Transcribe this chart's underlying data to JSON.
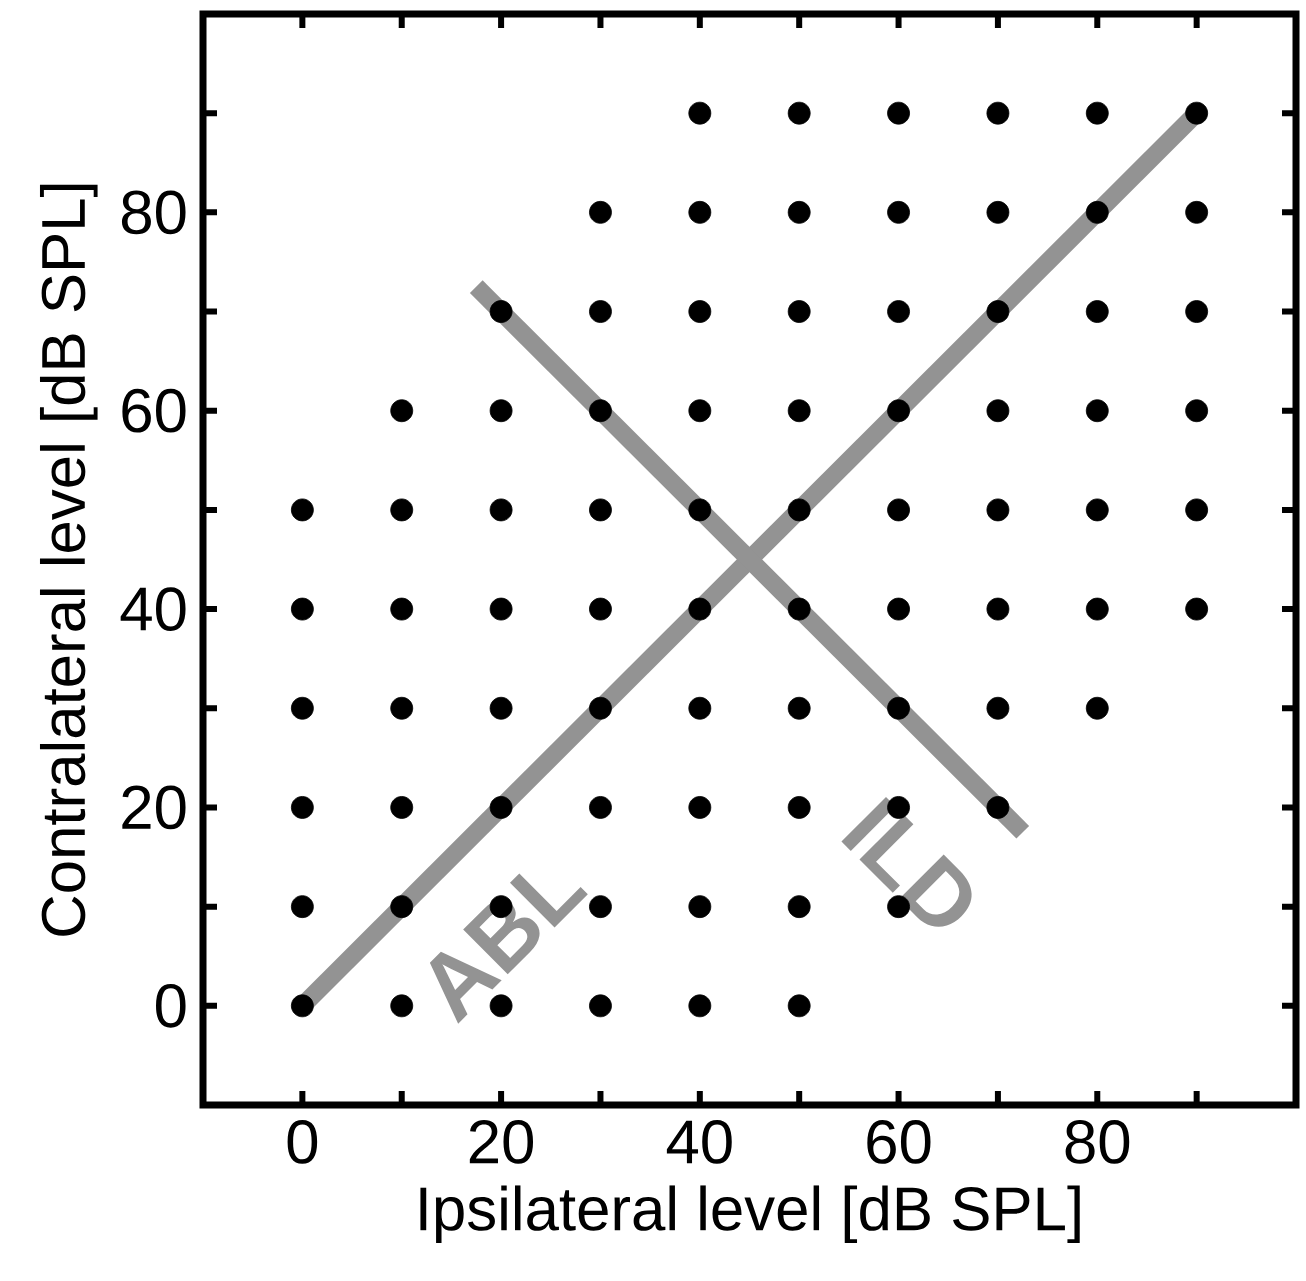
{
  "chart_data": {
    "type": "scatter",
    "xlabel": "Ipsilateral level [dB SPL]",
    "ylabel": "Contralateral level [dB SPL]",
    "xlim": [
      -10,
      100
    ],
    "ylim": [
      -10,
      100
    ],
    "xticks": [
      0,
      {
        "value": 10,
        "label": null
      },
      20,
      {
        "value": 30,
        "label": null
      },
      40,
      {
        "value": 50,
        "label": null
      },
      60,
      {
        "value": 70,
        "label": null
      },
      80,
      {
        "value": 90,
        "label": null
      }
    ],
    "yticks": [
      0,
      {
        "value": 10,
        "label": null
      },
      20,
      {
        "value": 30,
        "label": null
      },
      40,
      {
        "value": 50,
        "label": null
      },
      60,
      {
        "value": 70,
        "label": null
      },
      80,
      {
        "value": 90,
        "label": null
      }
    ],
    "series": [
      {
        "marker": "circle",
        "color": "#000000",
        "x": [
          0,
          10,
          20,
          30,
          40,
          50,
          0,
          10,
          20,
          30,
          40,
          50,
          60,
          0,
          10,
          20,
          30,
          40,
          50,
          60,
          70,
          0,
          10,
          20,
          30,
          40,
          50,
          60,
          70,
          80,
          0,
          10,
          20,
          30,
          40,
          50,
          60,
          70,
          80,
          90,
          0,
          10,
          20,
          30,
          40,
          50,
          60,
          70,
          80,
          90,
          10,
          20,
          30,
          40,
          50,
          60,
          70,
          80,
          90,
          20,
          30,
          40,
          50,
          60,
          70,
          80,
          90,
          30,
          40,
          50,
          60,
          70,
          80,
          90,
          40,
          50,
          60,
          70,
          80,
          90
        ],
        "values": [
          0,
          0,
          0,
          0,
          0,
          0,
          10,
          10,
          10,
          10,
          10,
          10,
          10,
          20,
          20,
          20,
          20,
          20,
          20,
          20,
          20,
          30,
          30,
          30,
          30,
          30,
          30,
          30,
          30,
          30,
          40,
          40,
          40,
          40,
          40,
          40,
          40,
          40,
          40,
          40,
          50,
          50,
          50,
          50,
          50,
          50,
          50,
          50,
          50,
          50,
          60,
          60,
          60,
          60,
          60,
          60,
          60,
          60,
          60,
          70,
          70,
          70,
          70,
          70,
          70,
          70,
          70,
          80,
          80,
          80,
          80,
          80,
          80,
          80,
          90,
          90,
          90,
          90,
          90,
          90
        ]
      },
      {
        "type": "line",
        "name": "ABL",
        "marker": "none",
        "color": "#939393",
        "x": [
          0,
          90
        ],
        "values": [
          0,
          90
        ]
      },
      {
        "type": "line",
        "name": "ILD",
        "marker": "none",
        "color": "#939393",
        "x": [
          17.5,
          72.5
        ],
        "values": [
          72.5,
          17.5
        ]
      }
    ]
  }
}
